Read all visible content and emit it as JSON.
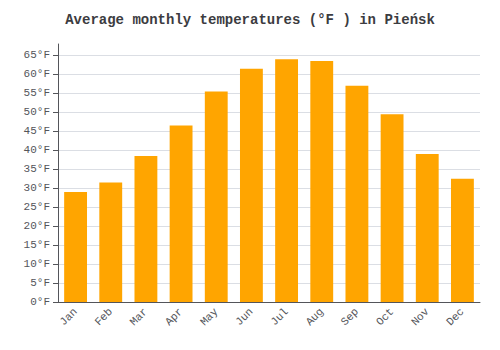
{
  "chart_data": {
    "type": "bar",
    "title": "Average monthly temperatures (°F ) in Pieńsk",
    "categories": [
      "Jan",
      "Feb",
      "Mar",
      "Apr",
      "May",
      "Jun",
      "Jul",
      "Aug",
      "Sep",
      "Oct",
      "Nov",
      "Dec"
    ],
    "values": [
      29,
      31.5,
      38.5,
      46.5,
      55.5,
      61.5,
      64,
      63.5,
      57,
      49.5,
      39,
      32.5
    ],
    "color": "#FFA500",
    "ylim": [
      0,
      68
    ],
    "yticks": [
      {
        "value": 0,
        "label": "0°F"
      },
      {
        "value": 5,
        "label": "5°F"
      },
      {
        "value": 10,
        "label": "10°F"
      },
      {
        "value": 15,
        "label": "15°F"
      },
      {
        "value": 20,
        "label": "20°F"
      },
      {
        "value": 25,
        "label": "25°F"
      },
      {
        "value": 30,
        "label": "30°F"
      },
      {
        "value": 35,
        "label": "35°F"
      },
      {
        "value": 40,
        "label": "40°F"
      },
      {
        "value": 45,
        "label": "45°F"
      },
      {
        "value": 50,
        "label": "50°F"
      },
      {
        "value": 55,
        "label": "55°F"
      },
      {
        "value": 60,
        "label": "60°F"
      },
      {
        "value": 65,
        "label": "65°F"
      }
    ],
    "grid": true
  }
}
